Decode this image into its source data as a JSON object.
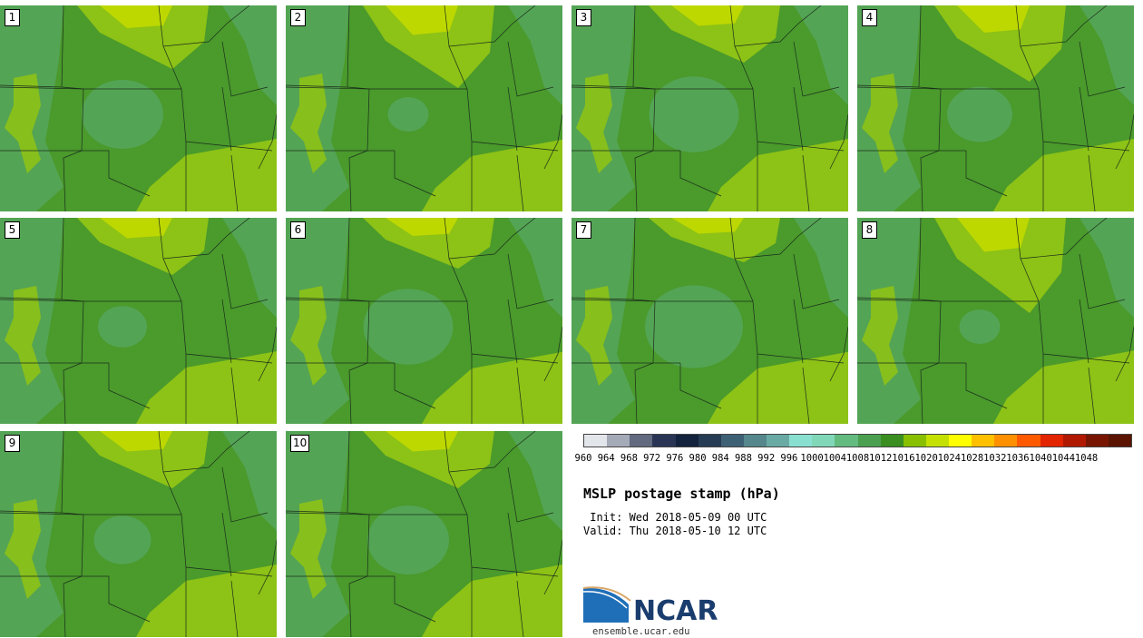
{
  "members": [
    "1",
    "2",
    "3",
    "4",
    "5",
    "6",
    "7",
    "8",
    "9",
    "10"
  ],
  "colors": {
    "dark_green": "#4a9a2c",
    "mid_green": "#54a455",
    "light_green": "#8dc216",
    "yellow_green": "#bdd800",
    "border": "#1b2e1b"
  },
  "colorbar": {
    "colors": [
      "#e2e6ea",
      "#a5aab8",
      "#626a80",
      "#2a3556",
      "#13223d",
      "#263c55",
      "#3e6075",
      "#55878c",
      "#6aaaa5",
      "#8ae0d0",
      "#80d8b8",
      "#63bb80",
      "#4aa050",
      "#3a8f20",
      "#88c000",
      "#c4e000",
      "#ffff00",
      "#ffc000",
      "#ff9000",
      "#ff5a00",
      "#e22400",
      "#b01900",
      "#781500",
      "#5a1400"
    ],
    "tick_labels": [
      "960",
      "964",
      "968",
      "972",
      "976",
      "980",
      "984",
      "988",
      "992",
      "996",
      "1000",
      "1004",
      "1008",
      "1012",
      "1016",
      "1020",
      "1024",
      "1028",
      "1032",
      "1036",
      "1040",
      "1044",
      "1048"
    ]
  },
  "title": "MSLP postage stamp (hPa)",
  "init": " Init: Wed 2018-05-09 00 UTC",
  "valid": "Valid: Thu 2018-05-10 12 UTC",
  "logo": {
    "name": "NCAR",
    "url": "ensemble.ucar.edu"
  }
}
